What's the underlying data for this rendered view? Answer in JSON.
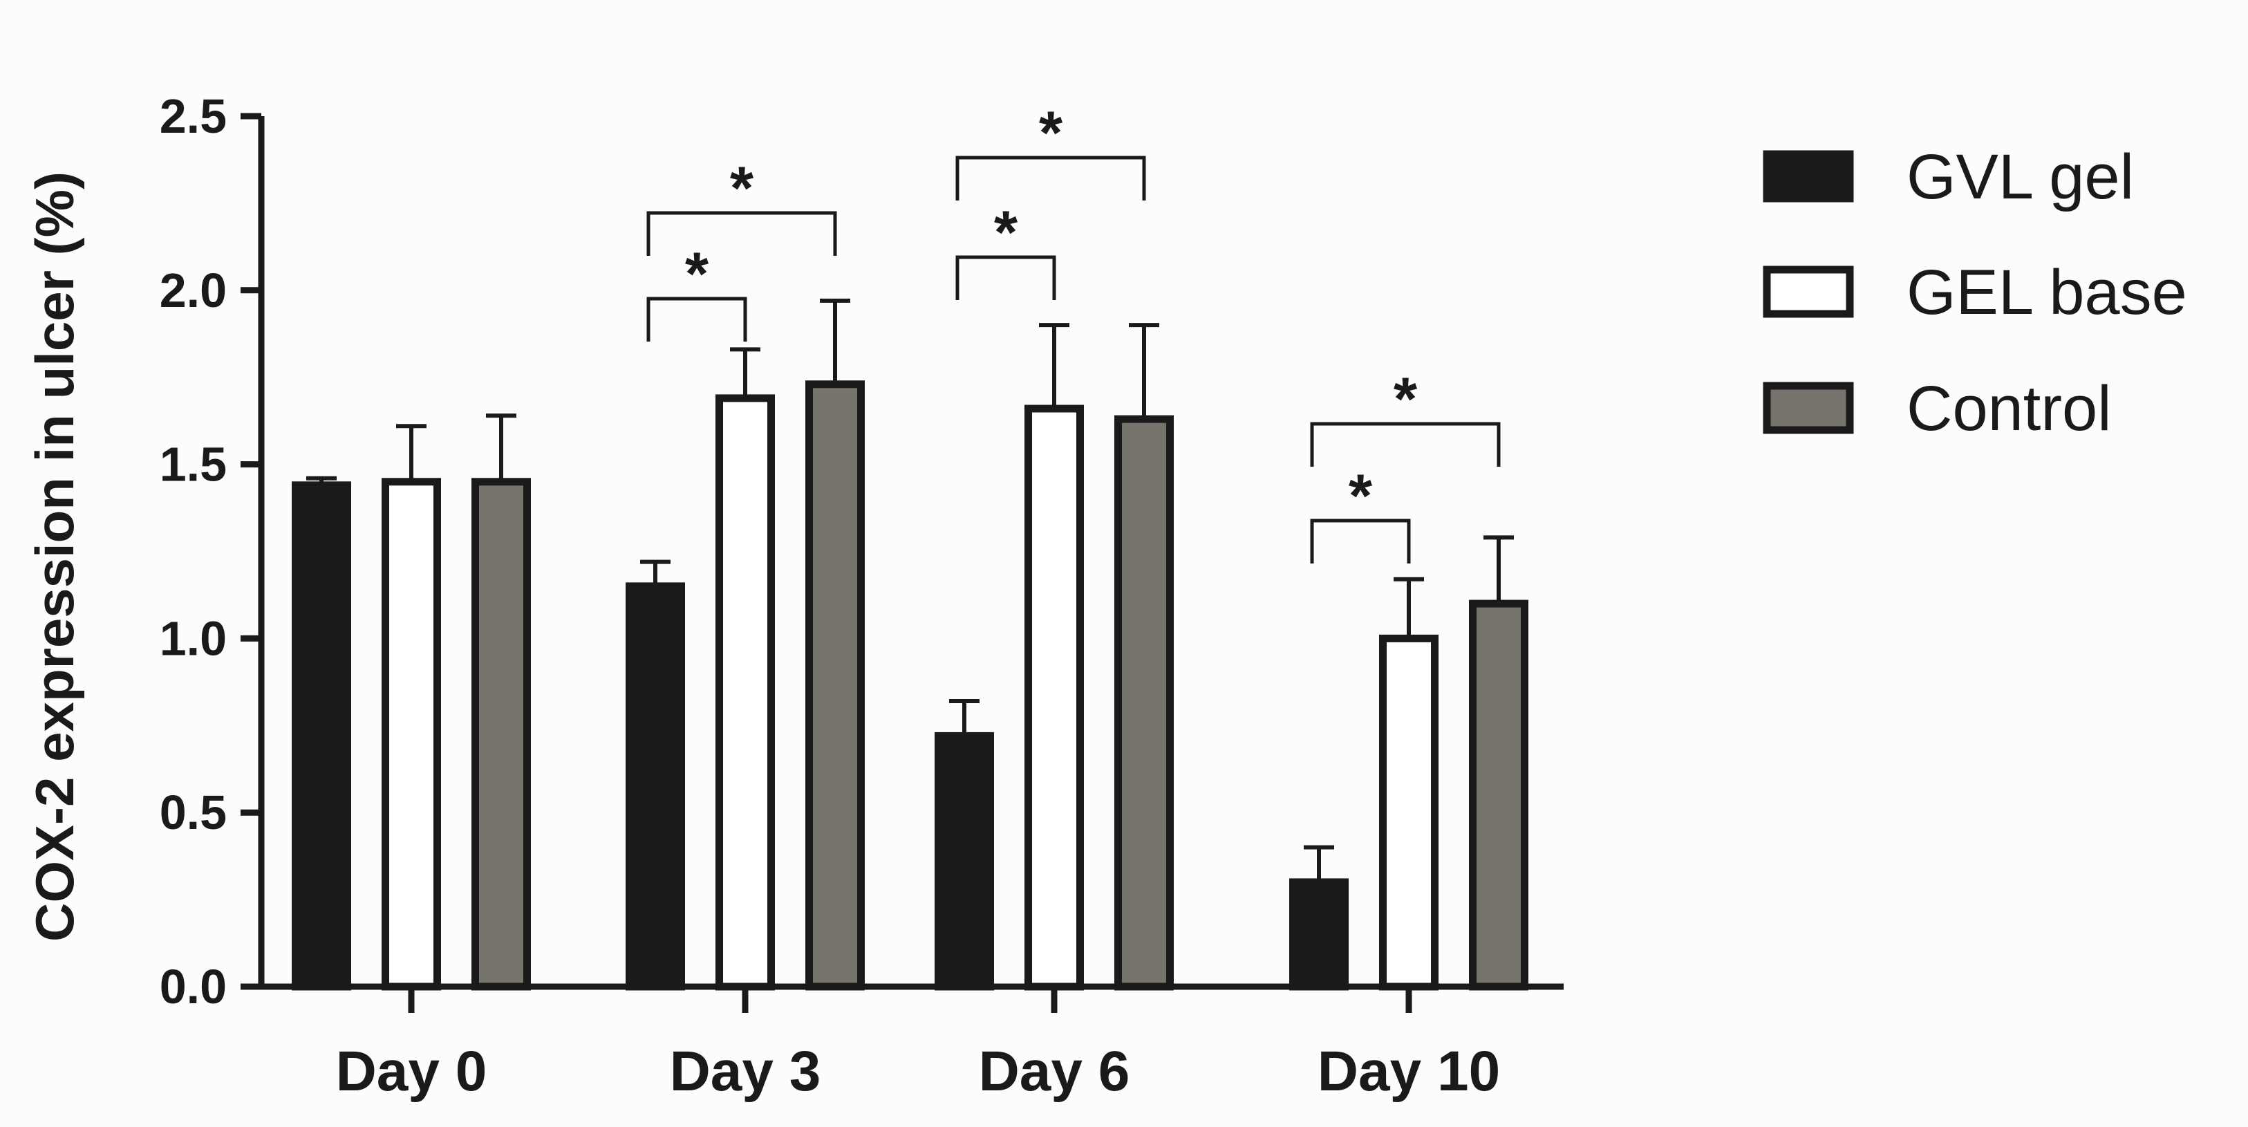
{
  "chart_data": {
    "type": "bar",
    "ylabel": "COX-2  expression in ulcer  (%)",
    "ylim": [
      0,
      2.5
    ],
    "yticks": [
      "0.0",
      "0.5",
      "1.0",
      "1.5",
      "2.0",
      "2.5"
    ],
    "categories": [
      "Day 0",
      "Day 3",
      "Day 6",
      "Day 10"
    ],
    "series": [
      {
        "name": "GVL gel",
        "color": "#1a1a1a",
        "values": [
          1.44,
          1.15,
          0.72,
          0.3
        ],
        "errors": [
          0.02,
          0.07,
          0.1,
          0.1
        ]
      },
      {
        "name": "GEL base",
        "color": "#ffffff",
        "values": [
          1.45,
          1.69,
          1.66,
          1.0
        ],
        "errors": [
          0.16,
          0.14,
          0.24,
          0.17
        ]
      },
      {
        "name": "Control",
        "color": "#77736d",
        "values": [
          1.45,
          1.73,
          1.63,
          1.1
        ],
        "errors": [
          0.19,
          0.24,
          0.27,
          0.19
        ]
      }
    ],
    "significance": [
      {
        "category": "Day 3",
        "from": "GVL gel",
        "to": "GEL base",
        "label": "*"
      },
      {
        "category": "Day 3",
        "from": "GVL gel",
        "to": "Control",
        "label": "*"
      },
      {
        "category": "Day 6",
        "from": "GVL gel",
        "to": "GEL base",
        "label": "*"
      },
      {
        "category": "Day 6",
        "from": "GVL gel",
        "to": "Control",
        "label": "*"
      },
      {
        "category": "Day 10",
        "from": "GVL gel",
        "to": "GEL base",
        "label": "*"
      },
      {
        "category": "Day 10",
        "from": "GVL gel",
        "to": "Control",
        "label": "*"
      }
    ],
    "legend_position": "right",
    "grid": false
  }
}
